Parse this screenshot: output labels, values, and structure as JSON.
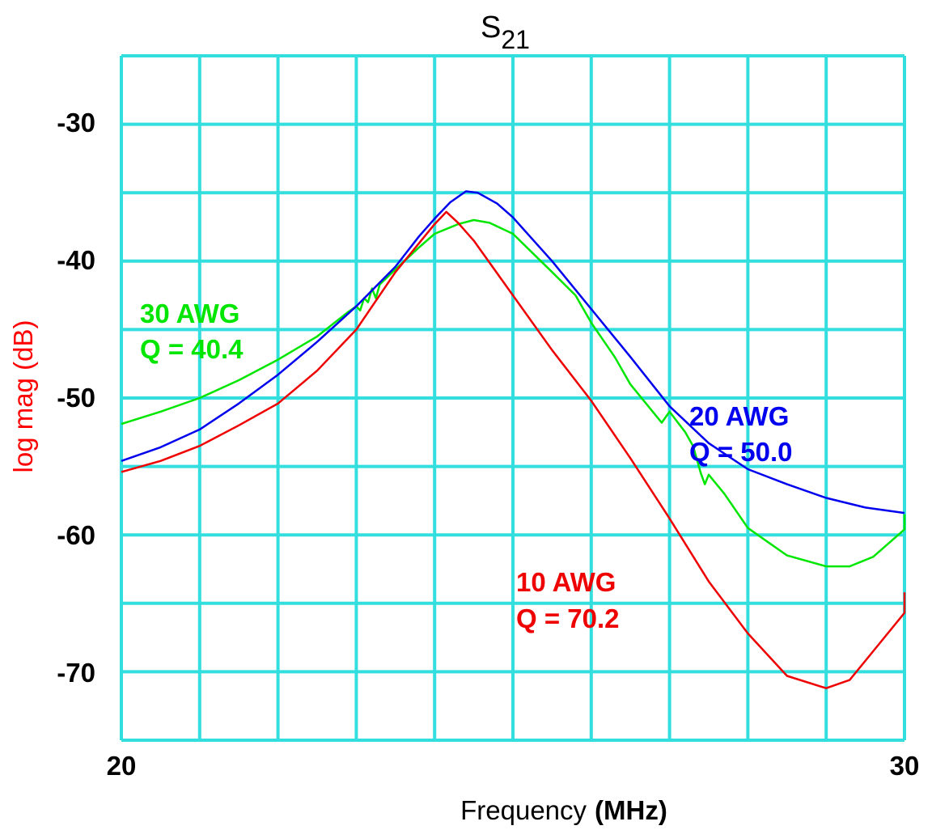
{
  "chart_data": {
    "type": "line",
    "title_main": "S",
    "title_sub": "21",
    "xlabel_word": "Frequency",
    "xlabel_unit": "(MHz)",
    "ylabel": "log mag (dB)",
    "xlim": [
      20,
      30
    ],
    "ylim": [
      -75,
      -25
    ],
    "x_tick_labels": [
      "20",
      "30"
    ],
    "y_tick_labels": [
      "-30",
      "-40",
      "-50",
      "-60",
      "-70"
    ],
    "x_gridlines": [
      20,
      21,
      22,
      23,
      24,
      25,
      26,
      27,
      28,
      29,
      30
    ],
    "y_gridlines": [
      -25,
      -30,
      -35,
      -40,
      -45,
      -50,
      -55,
      -60,
      -65,
      -70,
      -75
    ],
    "grid": true,
    "colors": {
      "grid": "#33dede",
      "ylabel": "#ff0000",
      "text": "#000000"
    },
    "series": [
      {
        "color": "#00e600",
        "points": [
          [
            20.0,
            -51.9
          ],
          [
            20.5,
            -51.0
          ],
          [
            21.0,
            -50.0
          ],
          [
            21.5,
            -48.7
          ],
          [
            22.0,
            -47.2
          ],
          [
            22.5,
            -45.5
          ],
          [
            22.9,
            -43.7
          ],
          [
            23.0,
            -43.3
          ],
          [
            23.05,
            -43.6
          ],
          [
            23.1,
            -42.7
          ],
          [
            23.15,
            -43.0
          ],
          [
            23.2,
            -42.0
          ],
          [
            23.25,
            -42.7
          ],
          [
            23.3,
            -41.7
          ],
          [
            23.5,
            -40.6
          ],
          [
            23.8,
            -39.0
          ],
          [
            24.0,
            -38.0
          ],
          [
            24.3,
            -37.3
          ],
          [
            24.5,
            -37.0
          ],
          [
            24.7,
            -37.2
          ],
          [
            25.0,
            -38.0
          ],
          [
            25.5,
            -40.8
          ],
          [
            25.8,
            -42.5
          ],
          [
            26.0,
            -44.5
          ],
          [
            26.3,
            -47.0
          ],
          [
            26.5,
            -49.0
          ],
          [
            26.9,
            -51.8
          ],
          [
            27.0,
            -51.0
          ],
          [
            27.2,
            -52.5
          ],
          [
            27.3,
            -53.5
          ],
          [
            27.4,
            -55.5
          ],
          [
            27.45,
            -56.3
          ],
          [
            27.5,
            -55.6
          ],
          [
            27.7,
            -57.0
          ],
          [
            28.0,
            -59.5
          ],
          [
            28.5,
            -61.5
          ],
          [
            29.0,
            -62.3
          ],
          [
            29.3,
            -62.3
          ],
          [
            29.6,
            -61.6
          ],
          [
            30.0,
            -59.6
          ],
          [
            30.0,
            -58.5
          ]
        ]
      },
      {
        "color": "#0000ee",
        "points": [
          [
            20.0,
            -54.6
          ],
          [
            20.5,
            -53.6
          ],
          [
            21.0,
            -52.3
          ],
          [
            21.5,
            -50.4
          ],
          [
            22.0,
            -48.3
          ],
          [
            22.5,
            -45.9
          ],
          [
            23.0,
            -43.3
          ],
          [
            23.5,
            -40.4
          ],
          [
            23.8,
            -38.2
          ],
          [
            24.0,
            -36.9
          ],
          [
            24.2,
            -35.7
          ],
          [
            24.4,
            -34.9
          ],
          [
            24.55,
            -35.0
          ],
          [
            24.8,
            -35.8
          ],
          [
            25.0,
            -36.8
          ],
          [
            25.5,
            -40.0
          ],
          [
            26.0,
            -43.5
          ],
          [
            26.5,
            -47.0
          ],
          [
            27.0,
            -50.6
          ],
          [
            27.5,
            -53.3
          ],
          [
            28.0,
            -55.2
          ],
          [
            28.5,
            -56.3
          ],
          [
            29.0,
            -57.3
          ],
          [
            29.5,
            -58.0
          ],
          [
            30.0,
            -58.4
          ]
        ]
      },
      {
        "color": "#ee0000",
        "points": [
          [
            20.0,
            -55.4
          ],
          [
            20.5,
            -54.6
          ],
          [
            21.0,
            -53.5
          ],
          [
            21.5,
            -52.0
          ],
          [
            22.0,
            -50.4
          ],
          [
            22.5,
            -48.0
          ],
          [
            23.0,
            -45.0
          ],
          [
            23.5,
            -40.8
          ],
          [
            23.8,
            -38.7
          ],
          [
            24.0,
            -37.3
          ],
          [
            24.15,
            -36.4
          ],
          [
            24.3,
            -37.2
          ],
          [
            24.5,
            -38.5
          ],
          [
            25.0,
            -42.5
          ],
          [
            25.5,
            -46.5
          ],
          [
            26.0,
            -50.2
          ],
          [
            26.5,
            -54.4
          ],
          [
            27.0,
            -58.8
          ],
          [
            27.5,
            -63.4
          ],
          [
            28.0,
            -67.2
          ],
          [
            28.5,
            -70.3
          ],
          [
            29.0,
            -71.2
          ],
          [
            29.3,
            -70.6
          ],
          [
            29.6,
            -68.5
          ],
          [
            30.0,
            -65.7
          ],
          [
            30.0,
            -64.2
          ]
        ]
      }
    ],
    "annotations": [
      {
        "color": "#00e600",
        "line1": "30 AWG",
        "line2": "Q = 40.4"
      },
      {
        "color": "#0000ee",
        "line1": "20 AWG",
        "line2": "Q = 50.0"
      },
      {
        "color": "#ee0000",
        "line1": "10 AWG",
        "line2": "Q = 70.2"
      }
    ]
  }
}
